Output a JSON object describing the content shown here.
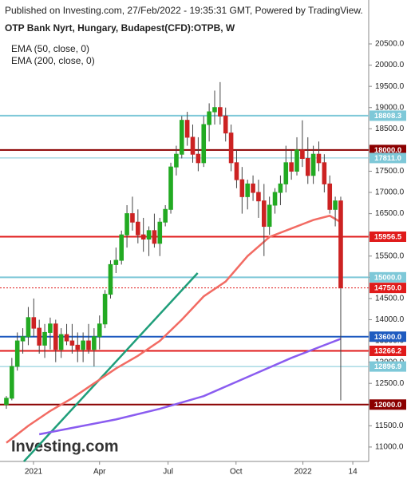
{
  "chart_data": {
    "type": "candlestick",
    "published": "Published on Investing.com, 27/Feb/2022 - 19:35:31 GMT, Powered by TradingView.",
    "title": "OTP Bank Nyrt, Hungary, Budapest(CFD):OTPB, W",
    "logo": "Investing.com",
    "up_color": "#22aa22",
    "down_color": "#cc2222",
    "x": [
      0,
      1,
      2,
      3,
      4,
      5,
      6,
      7,
      8,
      9,
      10,
      11,
      12,
      13,
      14,
      15,
      16,
      17,
      18,
      19,
      20,
      21,
      22,
      23,
      24,
      25,
      26,
      27,
      28,
      29,
      30,
      31,
      32,
      33,
      34,
      35,
      36,
      37,
      38,
      39,
      40,
      41,
      42,
      43,
      44,
      45,
      46,
      47,
      48,
      49,
      50,
      51,
      52,
      53,
      54,
      55,
      56,
      57,
      58,
      59,
      60,
      61
    ],
    "open": [
      12000,
      12150,
      12900,
      13500,
      13600,
      14050,
      13800,
      13400,
      13700,
      13900,
      13300,
      13650,
      13500,
      13400,
      13300,
      13500,
      13300,
      13600,
      13900,
      14600,
      15300,
      15400,
      16000,
      16500,
      16300,
      16000,
      15900,
      16100,
      15800,
      16300,
      16600,
      17600,
      17900,
      18700,
      18300,
      17900,
      17700,
      18600,
      18900,
      19000,
      18800,
      18400,
      17700,
      17300,
      16900,
      17200,
      17000,
      16800,
      16200,
      16700,
      17000,
      17200,
      17700,
      17500,
      18000,
      17800,
      17400,
      17900,
      17700,
      17200,
      16600,
      16800
    ],
    "high": [
      12200,
      13100,
      13700,
      13800,
      14300,
      14500,
      14000,
      13900,
      14050,
      14000,
      13800,
      13900,
      13900,
      13700,
      13700,
      13900,
      13800,
      14100,
      14700,
      15400,
      15700,
      16100,
      16700,
      16900,
      16600,
      16400,
      16200,
      16500,
      16400,
      16700,
      17700,
      18100,
      18800,
      18900,
      18600,
      18300,
      18800,
      19100,
      19400,
      19600,
      19000,
      18600,
      18000,
      17600,
      17300,
      17400,
      17300,
      17200,
      16900,
      17100,
      17400,
      18100,
      18000,
      18300,
      18700,
      18300,
      18100,
      18200,
      17900,
      17400,
      16900,
      16900
    ],
    "low": [
      11900,
      12100,
      12800,
      13200,
      13400,
      13600,
      13200,
      13100,
      13300,
      13000,
      13100,
      13400,
      13200,
      13000,
      13000,
      13200,
      12900,
      13300,
      13800,
      14500,
      15100,
      15300,
      15700,
      16100,
      15800,
      15600,
      15500,
      15700,
      15500,
      16200,
      16500,
      17400,
      17800,
      18100,
      17700,
      17500,
      17600,
      18200,
      18600,
      18600,
      18200,
      17500,
      17100,
      16500,
      16600,
      16800,
      16400,
      15500,
      16000,
      16500,
      16700,
      17000,
      17300,
      17400,
      17600,
      17200,
      17200,
      17500,
      17000,
      16500,
      16200,
      12100
    ],
    "close": [
      12150,
      12900,
      13500,
      13600,
      14050,
      13800,
      13400,
      13700,
      13900,
      13300,
      13650,
      13500,
      13400,
      13300,
      13500,
      13300,
      13600,
      13900,
      14600,
      15300,
      15400,
      16000,
      16500,
      16300,
      16000,
      15900,
      16100,
      15800,
      16300,
      16600,
      17600,
      17900,
      18700,
      18300,
      17900,
      17700,
      18600,
      18900,
      19000,
      18800,
      18400,
      17700,
      17300,
      16900,
      17200,
      17000,
      16800,
      16200,
      16700,
      17000,
      17200,
      17700,
      17500,
      18000,
      17800,
      17400,
      17900,
      17700,
      17200,
      16600,
      16800,
      14750
    ],
    "series": [
      {
        "name": "EMA (50, close, 0)",
        "color": "#f26b63",
        "x": [
          0,
          4,
          8,
          12,
          16,
          20,
          24,
          28,
          32,
          36,
          40,
          44,
          48,
          52,
          56,
          59,
          61
        ],
        "values": [
          11100,
          11500,
          11850,
          12150,
          12500,
          12850,
          13150,
          13500,
          14000,
          14550,
          14900,
          15500,
          15950,
          16150,
          16350,
          16450,
          16300
        ]
      },
      {
        "name": "EMA (200, close, 0)",
        "color": "#8a5cf0",
        "x": [
          6,
          12,
          20,
          28,
          36,
          44,
          52,
          58,
          61
        ],
        "values": [
          11300,
          11450,
          11650,
          11900,
          12200,
          12650,
          13100,
          13400,
          13550
        ]
      }
    ],
    "trendline": {
      "color": "#1f9e7a",
      "x": [
        3.2,
        34.9
      ],
      "values": [
        10660,
        15100
      ]
    },
    "levels": [
      {
        "value": 18808.3,
        "label": "18808.3",
        "color": "#7ec8d8"
      },
      {
        "value": 18000,
        "label": "18000.0",
        "color": "#8b0000"
      },
      {
        "value": 17811,
        "label": "17811.0",
        "color": "#7ec8d8"
      },
      {
        "value": 15956.5,
        "label": "15956.5",
        "color": "#e01b1b"
      },
      {
        "value": 15000,
        "label": "15000.0",
        "color": "#7ec8d8"
      },
      {
        "value": 14750,
        "label": "14750.0",
        "color": "#e01b1b"
      },
      {
        "value": 13600,
        "label": "13600.0",
        "color": "#1f5bc0"
      },
      {
        "value": 13266.2,
        "label": "13266.2",
        "color": "#e01b1b"
      },
      {
        "value": 12896.9,
        "label": "12896.9",
        "color": "#7ec8d8"
      },
      {
        "value": 12000,
        "label": "12000.0",
        "color": "#8b0000"
      }
    ],
    "xlim": [
      -1.16,
      66.1
    ],
    "xticks": [
      {
        "value": 4.95,
        "label": "2021"
      },
      {
        "value": 17.0,
        "label": "Apr"
      },
      {
        "value": 29.5,
        "label": "Jul"
      },
      {
        "value": 41.9,
        "label": "Oct"
      },
      {
        "value": 54.1,
        "label": "2022"
      },
      {
        "value": 63.2,
        "label": "14"
      }
    ],
    "ylim": [
      10660,
      21535
    ],
    "yticks": [
      {
        "value": 11000,
        "label": "11000.0"
      },
      {
        "value": 11500,
        "label": "11500.0"
      },
      {
        "value": 12000,
        "label": "12000.0"
      },
      {
        "value": 12500,
        "label": "12500.0"
      },
      {
        "value": 13000,
        "label": "13000.0"
      },
      {
        "value": 13500,
        "label": "13500.0"
      },
      {
        "value": 14000,
        "label": "14000.0"
      },
      {
        "value": 14500,
        "label": "14500.0"
      },
      {
        "value": 15000,
        "label": "15000.0"
      },
      {
        "value": 15500,
        "label": "15500.0"
      },
      {
        "value": 16000,
        "label": "16000.0"
      },
      {
        "value": 16500,
        "label": "16500.0"
      },
      {
        "value": 17000,
        "label": "17000.0"
      },
      {
        "value": 17500,
        "label": "17500.0"
      },
      {
        "value": 18000,
        "label": "18000.0"
      },
      {
        "value": 18500,
        "label": "18500.0"
      },
      {
        "value": 19000,
        "label": "19000.0"
      },
      {
        "value": 19500,
        "label": "19500.0"
      },
      {
        "value": 20000,
        "label": "20000.0"
      },
      {
        "value": 20500,
        "label": "20500.0"
      }
    ]
  }
}
